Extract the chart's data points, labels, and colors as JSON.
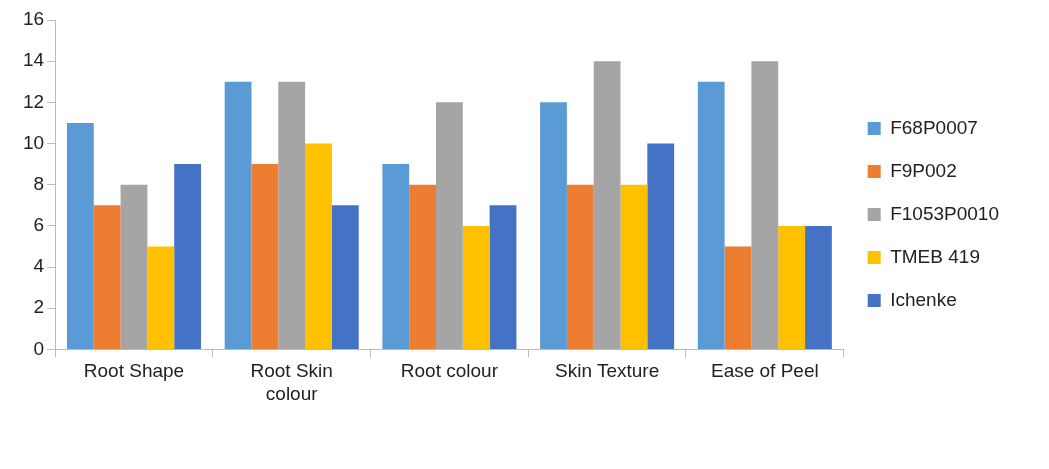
{
  "chart_data": {
    "type": "bar",
    "categories": [
      "Root Shape",
      "Root Skin colour",
      "Root colour",
      "Skin Texture",
      "Ease of Peel"
    ],
    "series": [
      {
        "name": "F68P0007",
        "color": "#5b9bd5",
        "values": [
          11,
          13,
          9,
          12,
          13
        ]
      },
      {
        "name": "F9P002",
        "color": "#ed7d31",
        "values": [
          7,
          9,
          8,
          8,
          5
        ]
      },
      {
        "name": "F1053P0010",
        "color": "#a5a5a5",
        "values": [
          8,
          13,
          12,
          14,
          14
        ]
      },
      {
        "name": "TMEB 419",
        "color": "#ffc000",
        "values": [
          5,
          10,
          6,
          8,
          6
        ]
      },
      {
        "name": "Ichenke",
        "color": "#4472c4",
        "values": [
          9,
          7,
          7,
          10,
          6
        ]
      }
    ],
    "ylim": [
      0,
      16
    ],
    "yticks": [
      0,
      2,
      4,
      6,
      8,
      10,
      12,
      14,
      16
    ],
    "grid": false,
    "legend": "right"
  }
}
